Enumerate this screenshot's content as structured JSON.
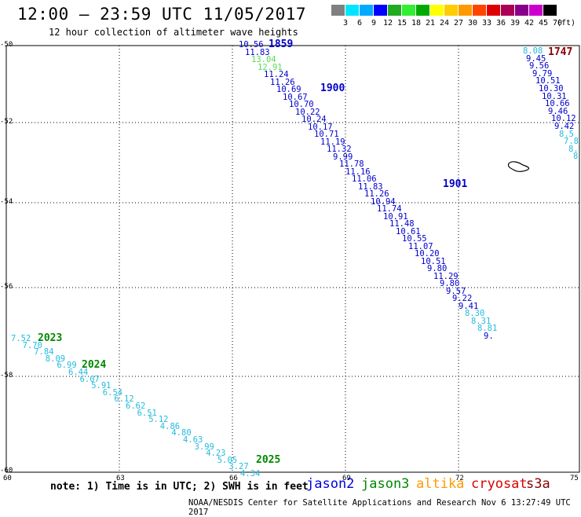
{
  "header": {
    "title": "12:00 — 23:59 UTC 11/05/2017",
    "subtitle": "12 hour collection of altimeter wave heights"
  },
  "legend": {
    "colors": [
      "#808080",
      "#00e5ff",
      "#00aaff",
      "#0000ff",
      "#22aa22",
      "#33ee33",
      "#00aa00",
      "#ffff00",
      "#ffcc00",
      "#ff9900",
      "#ff4400",
      "#dd0000",
      "#aa0055",
      "#880088",
      "#cc00cc",
      "#000000"
    ],
    "ticks": [
      "3",
      "6",
      "9",
      "12",
      "15",
      "18",
      "21",
      "24",
      "27",
      "30",
      "33",
      "36",
      "39",
      "42",
      "45",
      "70"
    ],
    "unit": "(ft)"
  },
  "axes": {
    "lon_labels": [
      "60",
      "63",
      "66",
      "69",
      "72",
      "75"
    ],
    "lat_labels": [
      "-50",
      "-52",
      "-54",
      "-56",
      "-58",
      "-60"
    ]
  },
  "note": "note:  1) Time is in UTC;  2) SWH is in feet",
  "satellites": [
    {
      "name": "jason2",
      "color": "#0000dd"
    },
    {
      "name": "jason3",
      "color": "#008800"
    },
    {
      "name": "altika",
      "color": "#ff9900"
    },
    {
      "name": "cryosat",
      "color": "#dd0000"
    },
    {
      "name": "s3a",
      "color": "#880000"
    }
  ],
  "footer": "NOAA/NESDIS Center for Satellite Applications and Research   Nov  6 13:27:49 UTC 2017",
  "tracks": [
    {
      "name": "track-1859-1901",
      "time_labels": [
        {
          "text": "1859",
          "color": "#0000cc"
        },
        {
          "text": "1900",
          "color": "#0000cc"
        },
        {
          "text": "1901",
          "color": "#0000cc"
        }
      ],
      "values": [
        {
          "v": "10.56",
          "c": "#0000cc"
        },
        {
          "v": "11.83",
          "c": "#0000cc"
        },
        {
          "v": "13.04",
          "c": "#55dd55"
        },
        {
          "v": "12.91",
          "c": "#55dd55"
        },
        {
          "v": "11.24",
          "c": "#0000cc"
        },
        {
          "v": "11.26",
          "c": "#0000cc"
        },
        {
          "v": "10.69",
          "c": "#0000cc"
        },
        {
          "v": "10.67",
          "c": "#0000cc"
        },
        {
          "v": "10.70",
          "c": "#0000cc"
        },
        {
          "v": "10.22",
          "c": "#0000cc"
        },
        {
          "v": "10.24",
          "c": "#0000cc"
        },
        {
          "v": "10.17",
          "c": "#0000cc"
        },
        {
          "v": "10.71",
          "c": "#0000cc"
        },
        {
          "v": "11.19",
          "c": "#0000cc"
        },
        {
          "v": "11.32",
          "c": "#0000cc"
        },
        {
          "v": "9.99",
          "c": "#0000cc"
        },
        {
          "v": "11.78",
          "c": "#0000cc"
        },
        {
          "v": "11.16",
          "c": "#0000cc"
        },
        {
          "v": "11.06",
          "c": "#0000cc"
        },
        {
          "v": "11.83",
          "c": "#0000cc"
        },
        {
          "v": "11.26",
          "c": "#0000cc"
        },
        {
          "v": "10.94",
          "c": "#0000cc"
        },
        {
          "v": "11.74",
          "c": "#0000cc"
        },
        {
          "v": "10.91",
          "c": "#0000cc"
        },
        {
          "v": "11.48",
          "c": "#0000cc"
        },
        {
          "v": "10.61",
          "c": "#0000cc"
        },
        {
          "v": "10.55",
          "c": "#0000cc"
        },
        {
          "v": "11.07",
          "c": "#0000cc"
        },
        {
          "v": "10.20",
          "c": "#0000cc"
        },
        {
          "v": "10.51",
          "c": "#0000cc"
        },
        {
          "v": "9.80",
          "c": "#0000cc"
        },
        {
          "v": "11.29",
          "c": "#0000cc"
        },
        {
          "v": "9.80",
          "c": "#0000cc"
        },
        {
          "v": "9.57",
          "c": "#0000cc"
        },
        {
          "v": "9.22",
          "c": "#0000cc"
        },
        {
          "v": "9.41",
          "c": "#0000cc"
        },
        {
          "v": "8.30",
          "c": "#22bbdd"
        },
        {
          "v": "8.31",
          "c": "#22bbdd"
        },
        {
          "v": "8.81",
          "c": "#22bbdd"
        },
        {
          "v": "9.",
          "c": "#0000cc"
        }
      ]
    },
    {
      "name": "track-1747",
      "time_labels": [
        {
          "text": "1747",
          "color": "#880000"
        }
      ],
      "values": [
        {
          "v": "8.08",
          "c": "#22bbdd"
        },
        {
          "v": "9.45",
          "c": "#0000cc"
        },
        {
          "v": "9.56",
          "c": "#0000cc"
        },
        {
          "v": "9.79",
          "c": "#0000cc"
        },
        {
          "v": "10.51",
          "c": "#0000cc"
        },
        {
          "v": "10.30",
          "c": "#0000cc"
        },
        {
          "v": "10.31",
          "c": "#0000cc"
        },
        {
          "v": "10.66",
          "c": "#0000cc"
        },
        {
          "v": "9.46",
          "c": "#0000cc"
        },
        {
          "v": "10.12",
          "c": "#0000cc"
        },
        {
          "v": "9.42",
          "c": "#0000cc"
        },
        {
          "v": "8.5",
          "c": "#22bbdd"
        },
        {
          "v": "7.8",
          "c": "#22bbdd"
        },
        {
          "v": "8.",
          "c": "#22bbdd"
        },
        {
          "v": "8",
          "c": "#22bbdd"
        }
      ]
    },
    {
      "name": "track-2023-2025",
      "time_labels": [
        {
          "text": "2023",
          "color": "#008800"
        },
        {
          "text": "2024",
          "color": "#008800"
        },
        {
          "text": "2025",
          "color": "#008800"
        }
      ],
      "values": [
        {
          "v": "7.52",
          "c": "#22bbdd"
        },
        {
          "v": "7.70",
          "c": "#22bbdd"
        },
        {
          "v": "7.84",
          "c": "#22bbdd"
        },
        {
          "v": "8.09",
          "c": "#22bbdd"
        },
        {
          "v": "6.99",
          "c": "#22bbdd"
        },
        {
          "v": "6.44",
          "c": "#22bbdd"
        },
        {
          "v": "6.07",
          "c": "#22bbdd"
        },
        {
          "v": "5.91",
          "c": "#22bbdd"
        },
        {
          "v": "6.54",
          "c": "#22bbdd"
        },
        {
          "v": "6.12",
          "c": "#22bbdd"
        },
        {
          "v": "6.62",
          "c": "#22bbdd"
        },
        {
          "v": "6.51",
          "c": "#22bbdd"
        },
        {
          "v": "5.12",
          "c": "#22bbdd"
        },
        {
          "v": "4.86",
          "c": "#22bbdd"
        },
        {
          "v": "4.80",
          "c": "#22bbdd"
        },
        {
          "v": "4.63",
          "c": "#22bbdd"
        },
        {
          "v": "3.99",
          "c": "#22bbdd"
        },
        {
          "v": "4.23",
          "c": "#22bbdd"
        },
        {
          "v": "5.05",
          "c": "#22bbdd"
        },
        {
          "v": "3.27",
          "c": "#22bbdd"
        },
        {
          "v": "4.34",
          "c": "#22bbdd"
        }
      ]
    }
  ]
}
